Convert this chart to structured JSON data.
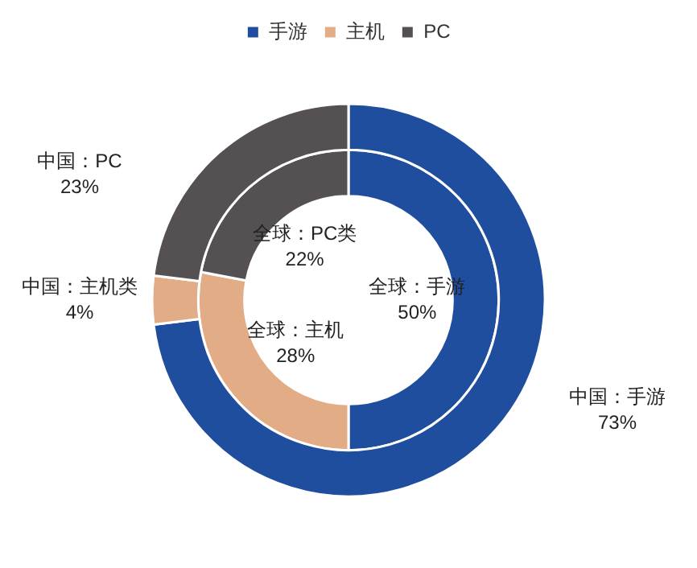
{
  "chart_data": {
    "type": "donut",
    "categories": [
      "手游",
      "主机",
      "PC"
    ],
    "colors": [
      "#1f4e9f",
      "#e2ad86",
      "#555152"
    ],
    "series": [
      {
        "values": [
          73,
          4,
          23
        ],
        "value_labels": [
          "中国：手游\n73%",
          "中国：主机类\n4%",
          "中国：PC\n23%"
        ]
      },
      {
        "values": [
          50,
          28,
          22
        ],
        "value_labels": [
          "全球：手游\n50%",
          "全球：主机\n28%",
          "全球：PC类\n22%"
        ]
      }
    ],
    "legend": "top"
  }
}
